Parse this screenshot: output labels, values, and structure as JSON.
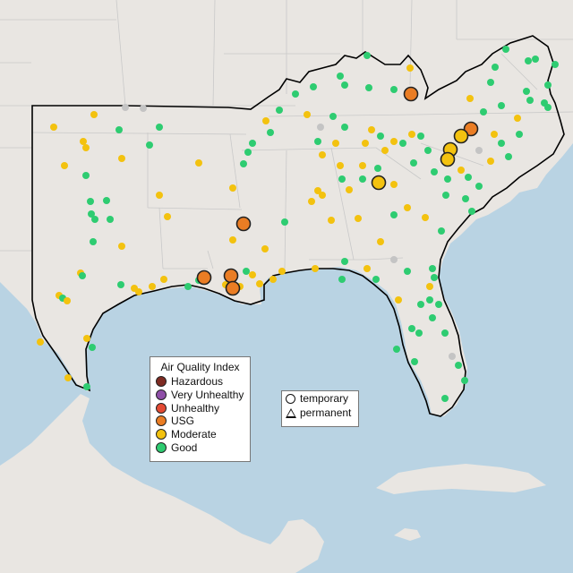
{
  "legend": {
    "title": "Air Quality Index",
    "categories": [
      {
        "label": "Hazardous",
        "color": "#7e2b22"
      },
      {
        "label": "Very Unhealthy",
        "color": "#8f4fa8"
      },
      {
        "label": "Unhealthy",
        "color": "#e34a33"
      },
      {
        "label": "USG",
        "color": "#ea7d24"
      },
      {
        "label": "Moderate",
        "color": "#f3c20f"
      },
      {
        "label": "Good",
        "color": "#2ecc71"
      }
    ]
  },
  "shape_legend": {
    "temporary": "temporary",
    "permanent": "permanent"
  },
  "colors": {
    "land": "#e9e6e2",
    "water": "#b9d3e3",
    "no_data": "#c4c4c4",
    "boundary": "#000000"
  }
}
